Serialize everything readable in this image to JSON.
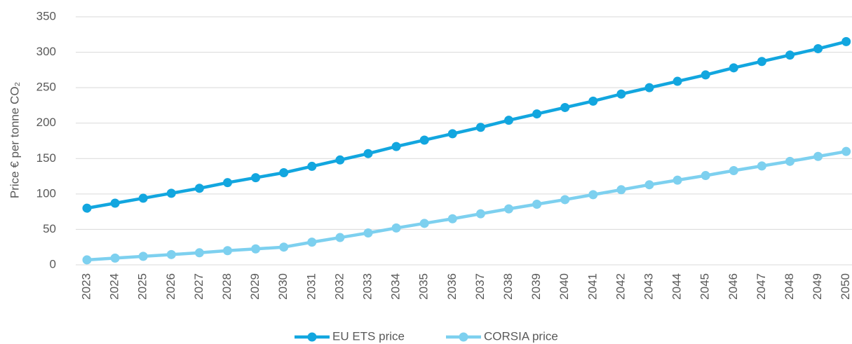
{
  "chart_data": {
    "type": "line",
    "y_axis_label": "Price € per tonne CO₂",
    "categories": [
      "2023",
      "2024",
      "2025",
      "2026",
      "2027",
      "2028",
      "2029",
      "2030",
      "2031",
      "2032",
      "2033",
      "2034",
      "2035",
      "2036",
      "2037",
      "2038",
      "2039",
      "2040",
      "2041",
      "2042",
      "2043",
      "2044",
      "2045",
      "2046",
      "2047",
      "2048",
      "2049",
      "2050"
    ],
    "series": [
      {
        "name": "EU ETS price",
        "color": "#12a6df",
        "values": [
          80,
          87,
          94,
          101,
          108,
          116,
          123,
          130,
          139,
          148,
          157,
          167,
          176,
          185,
          194,
          204,
          213,
          222,
          231,
          241,
          250,
          259,
          268,
          278,
          287,
          296,
          305,
          315
        ]
      },
      {
        "name": "CORSIA price",
        "color": "#7dd0ef",
        "values": [
          7,
          9.5,
          12,
          14.5,
          17,
          20,
          22.5,
          25,
          32,
          38.5,
          45,
          52,
          58.5,
          65,
          72,
          79,
          85.5,
          92,
          99,
          106,
          113,
          119.5,
          126,
          133,
          139.5,
          146,
          153,
          160
        ]
      }
    ],
    "ylim": [
      0,
      350
    ],
    "yticks": [
      0,
      50,
      100,
      150,
      200,
      250,
      300,
      350
    ],
    "grid": true,
    "legend": "bottom"
  }
}
